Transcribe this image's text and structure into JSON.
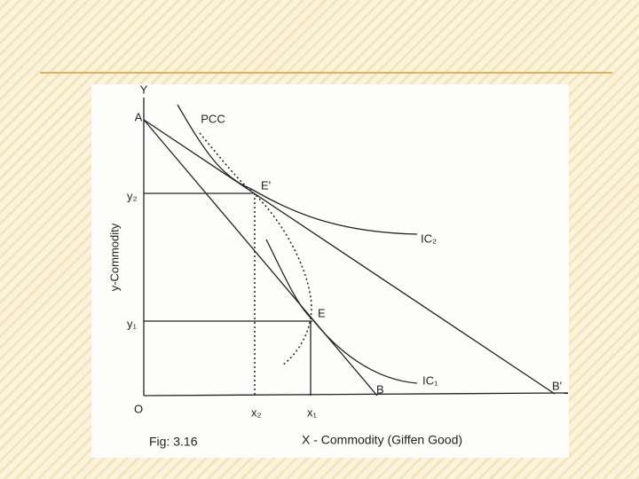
{
  "labels": {
    "y_axis": "Y",
    "point_a": "A",
    "pcc": "PCC",
    "e_prime": "E'",
    "y2": "y₂",
    "ic2": "IC₂",
    "y_title": "y-Commodity",
    "e": "E",
    "y1": "y₁",
    "ic1": "IC₁",
    "b": "B",
    "b_prime": "B'",
    "origin": "O",
    "x2": "x₂",
    "x1": "x₁",
    "caption": "Fig: 3.16",
    "x_title": "X - Commodity (Giffen Good)"
  }
}
